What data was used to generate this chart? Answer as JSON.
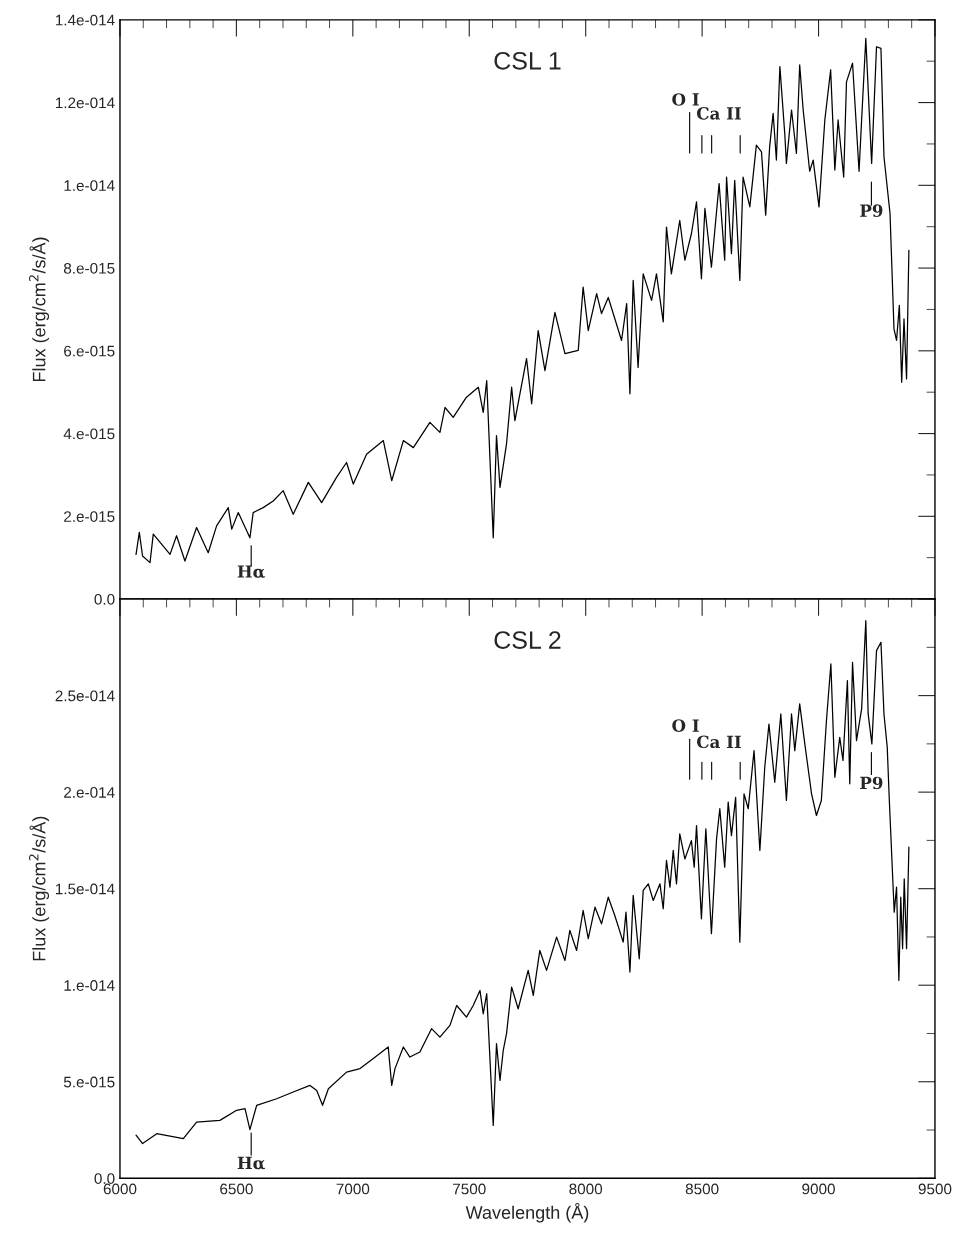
{
  "chart_data": [
    {
      "type": "line",
      "title": "CSL 1",
      "ylabel": "Flux (erg/cm$^{2}$/s/Å)",
      "tick_labels": "y",
      "xlim": [
        6000,
        9500
      ],
      "xticks": [
        6000,
        6500,
        7000,
        7500,
        8000,
        8500,
        9000,
        9500
      ],
      "ylim": [
        0,
        1.4e-14
      ],
      "yticks": [
        {
          "value": 0,
          "label": "0.0"
        },
        {
          "value": 2e-15,
          "label": "2.e-015"
        },
        {
          "value": 4e-15,
          "label": "4.e-015"
        },
        {
          "value": 6e-15,
          "label": "6.e-015"
        },
        {
          "value": 8e-15,
          "label": "8.e-015"
        },
        {
          "value": 1e-14,
          "label": "1.e-014"
        },
        {
          "value": 1.2e-14,
          "label": "1.2e-014"
        },
        {
          "value": 1.4e-14,
          "label": "1.4e-014"
        }
      ],
      "annotations": [
        "Hα",
        "O I",
        "Ca II",
        "P9"
      ],
      "series": [
        {
          "color": "#000000",
          "x": [
            6069,
            6083,
            6097,
            6129,
            6143,
            6215,
            6243,
            6279,
            6329,
            6379,
            6415,
            6465,
            6480,
            6508,
            6558,
            6572,
            6615,
            6658,
            6701,
            6744,
            6809,
            6866,
            6930,
            6973,
            7002,
            7059,
            7131,
            7167,
            7217,
            7260,
            7331,
            7374,
            7396,
            7431,
            7488,
            7539,
            7560,
            7575,
            7603,
            7617,
            7632,
            7660,
            7682,
            7696,
            7746,
            7768,
            7796,
            7825,
            7868,
            7911,
            7968,
            7989,
            8011,
            8047,
            8068,
            8097,
            8154,
            8176,
            8190,
            8204,
            8225,
            8247,
            8283,
            8304,
            8333,
            8347,
            8368,
            8404,
            8426,
            8454,
            8476,
            8497,
            8512,
            8540,
            8573,
            8597,
            8605,
            8626,
            8640,
            8662,
            8676,
            8705,
            8733,
            8755,
            8773,
            8790,
            8805,
            8819,
            8834,
            8855,
            8862,
            8884,
            8905,
            8919,
            8934,
            8962,
            8977,
            9002,
            9027,
            9052,
            9070,
            9084,
            9108,
            9120,
            9146,
            9174,
            9185,
            9203,
            9228,
            9249,
            9268,
            9281,
            9307,
            9324,
            9335,
            9347,
            9357,
            9367,
            9378,
            9388
          ],
          "values": [
            1.08e-15,
            1.61e-15,
            1.04e-15,
            8.8e-16,
            1.57e-15,
            1.08e-15,
            1.53e-15,
            9.2e-16,
            1.73e-15,
            1.12e-15,
            1.77e-15,
            2.21e-15,
            1.69e-15,
            2.09e-15,
            1.48e-15,
            2.09e-15,
            2.21e-15,
            2.37e-15,
            2.62e-15,
            2.05e-15,
            2.82e-15,
            2.33e-15,
            2.94e-15,
            3.3e-15,
            2.78e-15,
            3.5e-15,
            3.83e-15,
            2.86e-15,
            3.83e-15,
            3.66e-15,
            4.27e-15,
            4.03e-15,
            4.63e-15,
            4.39e-15,
            4.88e-15,
            5.12e-15,
            4.51e-15,
            5.28e-15,
            1.48e-15,
            3.95e-15,
            2.7e-15,
            3.75e-15,
            5.12e-15,
            4.31e-15,
            5.81e-15,
            4.72e-15,
            6.49e-15,
            5.52e-15,
            6.93e-15,
            5.93e-15,
            6.01e-15,
            7.54e-15,
            6.49e-15,
            7.38e-15,
            6.9e-15,
            7.29e-15,
            6.25e-15,
            7.14e-15,
            4.96e-15,
            7.7e-15,
            5.6e-15,
            7.86e-15,
            7.22e-15,
            7.86e-15,
            6.7e-15,
            8.99e-15,
            7.86e-15,
            9.15e-15,
            8.19e-15,
            8.83e-15,
            9.6e-15,
            7.74e-15,
            9.44e-15,
            8.02e-15,
            1.004e-14,
            8.19e-15,
            1.02e-14,
            8.35e-15,
            1.012e-14,
            7.7e-15,
            1.02e-14,
            9.48e-15,
            1.097e-14,
            1.081e-14,
            9.28e-15,
            1.093e-14,
            1.174e-14,
            1.061e-14,
            1.287e-14,
            1.124e-14,
            1.053e-14,
            1.182e-14,
            1.077e-14,
            1.291e-14,
            1.182e-14,
            1.034e-14,
            1.061e-14,
            9.48e-15,
            1.158e-14,
            1.279e-14,
            1.037e-14,
            1.158e-14,
            1.02e-14,
            1.25e-14,
            1.295e-14,
            1.034e-14,
            1.158e-14,
            1.355e-14,
            1.053e-14,
            1.335e-14,
            1.331e-14,
            1.069e-14,
            9.32e-15,
            6.53e-15,
            6.25e-15,
            7.1e-15,
            5.24e-15,
            6.77e-15,
            5.32e-15,
            8.43e-15
          ]
        }
      ]
    },
    {
      "type": "line",
      "title": "CSL 2",
      "ylabel": "Flux (erg/cm$^{2}$/s/Å)",
      "xlabel": "Wavelength (Å)",
      "xlim": [
        6000,
        9500
      ],
      "xticks": [
        6000,
        6500,
        7000,
        7500,
        8000,
        8500,
        9000,
        9500
      ],
      "ylim": [
        0,
        3e-14
      ],
      "yticks": [
        {
          "value": 0,
          "label": "0.0"
        },
        {
          "value": 5e-15,
          "label": "5.e-015"
        },
        {
          "value": 1e-14,
          "label": "1.e-014"
        },
        {
          "value": 1.5e-14,
          "label": "1.5e-014"
        },
        {
          "value": 2e-14,
          "label": "2.e-014"
        },
        {
          "value": 2.5e-14,
          "label": "2.5e-014"
        },
        {
          "value": 3e-14,
          "label": null
        }
      ],
      "annotations": [
        "Hα",
        "O I",
        "Ca II",
        "P9"
      ],
      "series": [
        {
          "color": "#000000",
          "x": [
            6069,
            6097,
            6158,
            6272,
            6329,
            6429,
            6501,
            6537,
            6558,
            6587,
            6673,
            6744,
            6816,
            6845,
            6870,
            6895,
            6973,
            7031,
            7088,
            7152,
            7167,
            7181,
            7217,
            7245,
            7288,
            7338,
            7374,
            7417,
            7446,
            7488,
            7517,
            7546,
            7560,
            7575,
            7603,
            7617,
            7632,
            7646,
            7660,
            7682,
            7710,
            7753,
            7775,
            7803,
            7832,
            7875,
            7911,
            7932,
            7961,
            7989,
            8011,
            8040,
            8068,
            8097,
            8125,
            8161,
            8173,
            8190,
            8204,
            8230,
            8247,
            8269,
            8290,
            8319,
            8333,
            8347,
            8362,
            8376,
            8390,
            8404,
            8426,
            8454,
            8466,
            8476,
            8497,
            8516,
            8540,
            8562,
            8576,
            8597,
            8612,
            8626,
            8644,
            8662,
            8680,
            8698,
            8723,
            8748,
            8769,
            8787,
            8812,
            8838,
            8862,
            8884,
            8898,
            8919,
            8941,
            8970,
            8991,
            9012,
            9034,
            9053,
            9070,
            9091,
            9105,
            9124,
            9134,
            9146,
            9163,
            9185,
            9203,
            9213,
            9229,
            9249,
            9268,
            9281,
            9295,
            9304,
            9314,
            9325,
            9335,
            9345,
            9353,
            9361,
            9368,
            9378,
            9388
          ],
          "values": [
            2.23e-15,
            1.8e-15,
            2.31e-15,
            2.05e-15,
            2.91e-15,
            3e-15,
            3.52e-15,
            3.61e-15,
            2.52e-15,
            3.78e-15,
            4.12e-15,
            4.47e-15,
            4.81e-15,
            4.55e-15,
            3.78e-15,
            4.64e-15,
            5.5e-15,
            5.68e-15,
            6.2e-15,
            6.8e-15,
            4.81e-15,
            5.68e-15,
            6.8e-15,
            6.28e-15,
            6.54e-15,
            7.75e-15,
            7.31e-15,
            7.92e-15,
            8.95e-15,
            8.35e-15,
            8.95e-15,
            9.73e-15,
            8.52e-15,
            9.56e-15,
            2.74e-15,
            6.97e-15,
            5.07e-15,
            6.63e-15,
            7.49e-15,
            9.9e-15,
            8.78e-15,
            1.077e-14,
            9.47e-15,
            1.18e-14,
            1.077e-14,
            1.249e-14,
            1.128e-14,
            1.284e-14,
            1.18e-14,
            1.387e-14,
            1.241e-14,
            1.404e-14,
            1.318e-14,
            1.456e-14,
            1.361e-14,
            1.223e-14,
            1.378e-14,
            1.068e-14,
            1.465e-14,
            1.137e-14,
            1.491e-14,
            1.525e-14,
            1.439e-14,
            1.525e-14,
            1.396e-14,
            1.646e-14,
            1.508e-14,
            1.698e-14,
            1.525e-14,
            1.784e-14,
            1.654e-14,
            1.749e-14,
            1.611e-14,
            1.827e-14,
            1.344e-14,
            1.81e-14,
            1.267e-14,
            1.758e-14,
            1.914e-14,
            1.611e-14,
            1.948e-14,
            1.775e-14,
            1.973e-14,
            1.223e-14,
            1.991e-14,
            1.914e-14,
            2.215e-14,
            1.698e-14,
            2.129e-14,
            2.352e-14,
            2.051e-14,
            2.405e-14,
            1.957e-14,
            2.405e-14,
            2.215e-14,
            2.457e-14,
            2.25e-14,
            1.991e-14,
            1.879e-14,
            1.957e-14,
            2.371e-14,
            2.664e-14,
            2.077e-14,
            2.284e-14,
            2.164e-14,
            2.578e-14,
            2.043e-14,
            2.672e-14,
            2.267e-14,
            2.431e-14,
            2.888e-14,
            2.405e-14,
            2.25e-14,
            2.733e-14,
            2.776e-14,
            2.405e-14,
            2.233e-14,
            1.957e-14,
            1.681e-14,
            1.378e-14,
            1.508e-14,
            1.025e-14,
            1.456e-14,
            1.189e-14,
            1.551e-14,
            1.189e-14,
            1.715e-14
          ]
        }
      ]
    }
  ]
}
